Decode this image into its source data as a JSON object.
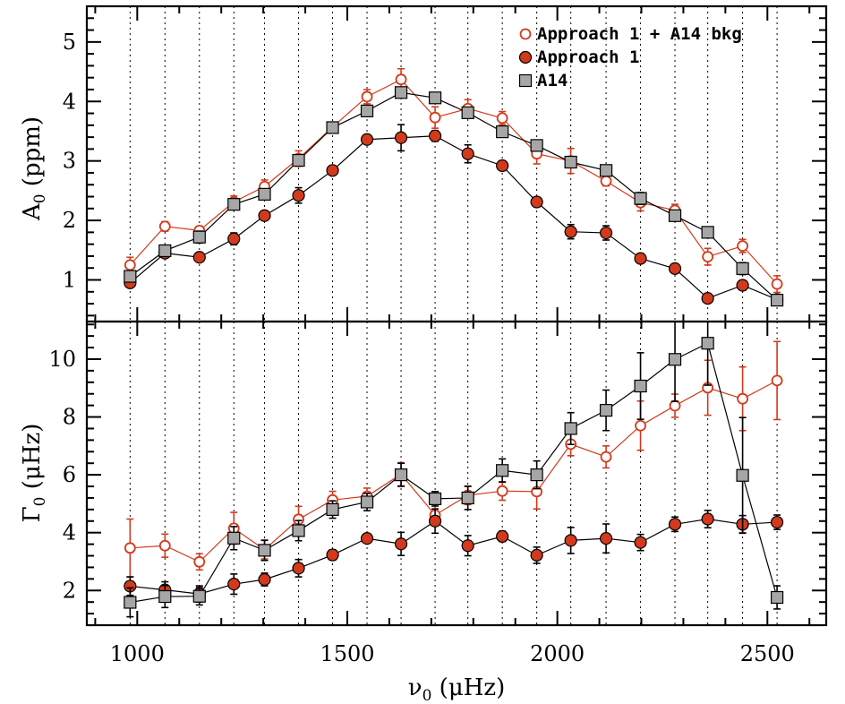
{
  "chart_data": [
    {
      "type": "line",
      "panel": "top",
      "ylabel": "A0 (ppm)",
      "ylabel_parts": {
        "main": "A",
        "sub": "0",
        "rest": " (ppm)"
      },
      "ylim": [
        0.3,
        5.6
      ],
      "yticks": [
        1,
        2,
        3,
        4,
        5
      ],
      "xlim": [
        880,
        2640
      ],
      "x": [
        983,
        1066,
        1148,
        1230,
        1303,
        1384,
        1465,
        1547,
        1628,
        1709,
        1787,
        1869,
        1951,
        2032,
        2116,
        2198,
        2280,
        2358,
        2441,
        2523
      ],
      "series": [
        {
          "name": "Approach 1 + A14 bkg",
          "color": "#d13a1c",
          "marker": "open-circle",
          "values": [
            1.25,
            1.9,
            1.83,
            2.31,
            2.57,
            3.04,
            3.57,
            4.08,
            4.37,
            3.73,
            3.88,
            3.72,
            3.12,
            3.0,
            2.66,
            2.3,
            2.17,
            1.39,
            1.57,
            0.93
          ],
          "errors": [
            0.13,
            0.08,
            0.07,
            0.1,
            0.11,
            0.13,
            0.08,
            0.12,
            0.18,
            0.18,
            0.15,
            0.11,
            0.17,
            0.21,
            0.08,
            0.14,
            0.1,
            0.14,
            0.11,
            0.14
          ]
        },
        {
          "name": "Approach 1",
          "color": "#d13a1c",
          "marker": "filled-circle",
          "values": [
            0.95,
            1.45,
            1.38,
            1.69,
            2.08,
            2.42,
            2.84,
            3.36,
            3.39,
            3.42,
            3.12,
            2.92,
            2.31,
            1.81,
            1.79,
            1.36,
            1.19,
            0.69,
            0.91,
            0.67
          ],
          "errors": [
            0.06,
            0.06,
            0.06,
            0.1,
            0.07,
            0.13,
            0.07,
            0.06,
            0.22,
            0.09,
            0.15,
            0.08,
            0.08,
            0.12,
            0.12,
            0.07,
            0.06,
            0.06,
            0.08,
            0.05
          ]
        },
        {
          "name": "A14",
          "color": "#a6a6a6",
          "marker": "filled-square",
          "values": [
            1.06,
            1.49,
            1.72,
            2.27,
            2.44,
            3.01,
            3.56,
            3.84,
            4.15,
            4.06,
            3.81,
            3.49,
            3.26,
            2.98,
            2.84,
            2.37,
            2.08,
            1.8,
            1.19,
            0.66
          ],
          "errors": [
            0.07,
            0.08,
            0.1,
            0.07,
            0.07,
            0.05,
            0.04,
            0.05,
            0.06,
            0.07,
            0.06,
            0.05,
            0.05,
            0.07,
            0.06,
            0.1,
            0.07,
            0.08,
            0.1,
            0.08
          ]
        }
      ],
      "legend": {
        "placement": "top-right",
        "entries": [
          "Approach 1 + A14 bkg",
          "Approach 1",
          "A14"
        ]
      }
    },
    {
      "type": "line",
      "panel": "bottom",
      "xlabel": "ν0 (μHz)",
      "xlabel_parts": {
        "main": "ν",
        "sub": "0",
        "rest": " (μHz)"
      },
      "ylabel": "Γ0 (μHz)",
      "ylabel_parts": {
        "main": "Γ",
        "sub": "0",
        "rest": " (μHz)"
      },
      "ylim": [
        0.8,
        11.3
      ],
      "yticks": [
        2,
        4,
        6,
        8,
        10
      ],
      "xlim": [
        880,
        2640
      ],
      "xticks": [
        1000,
        1500,
        2000,
        2500
      ],
      "x": [
        983,
        1066,
        1148,
        1230,
        1303,
        1384,
        1465,
        1547,
        1628,
        1709,
        1787,
        1869,
        1951,
        2032,
        2116,
        2198,
        2280,
        2358,
        2441,
        2523
      ],
      "series": [
        {
          "name": "Approach 1 + A14 bkg",
          "color": "#d13a1c",
          "marker": "open-circle",
          "values": [
            3.47,
            3.55,
            2.99,
            4.15,
            3.41,
            4.46,
            5.13,
            5.26,
            6.02,
            4.61,
            5.29,
            5.44,
            5.42,
            7.06,
            6.62,
            7.7,
            8.39,
            9.01,
            8.63,
            9.26
          ],
          "errors": [
            1.0,
            0.4,
            0.28,
            0.55,
            0.32,
            0.45,
            0.3,
            0.28,
            0.4,
            0.38,
            0.32,
            0.32,
            0.6,
            0.4,
            0.38,
            0.85,
            0.4,
            0.95,
            1.1,
            1.35
          ]
        },
        {
          "name": "Approach 1",
          "color": "#d13a1c",
          "marker": "filled-circle",
          "values": [
            2.15,
            2.02,
            1.88,
            2.22,
            2.38,
            2.77,
            3.23,
            3.8,
            3.61,
            4.4,
            3.55,
            3.87,
            3.22,
            3.73,
            3.8,
            3.66,
            4.29,
            4.47,
            4.29,
            4.36
          ],
          "errors": [
            0.32,
            0.28,
            0.28,
            0.35,
            0.22,
            0.3,
            0.18,
            0.12,
            0.4,
            0.42,
            0.35,
            0.18,
            0.28,
            0.45,
            0.5,
            0.28,
            0.25,
            0.3,
            0.3,
            0.25
          ]
        },
        {
          "name": "A14",
          "color": "#a6a6a6",
          "marker": "filled-square",
          "values": [
            1.59,
            1.79,
            1.8,
            3.81,
            3.39,
            4.07,
            4.8,
            5.06,
            6.0,
            5.17,
            5.2,
            6.15,
            6.0,
            7.6,
            8.23,
            9.07,
            9.99,
            10.55,
            5.98,
            1.76
          ],
          "errors": [
            0.5,
            0.38,
            0.3,
            0.4,
            0.35,
            0.35,
            0.3,
            0.3,
            0.4,
            0.25,
            0.4,
            0.4,
            0.48,
            0.55,
            0.7,
            1.15,
            1.45,
            1.45,
            2.0,
            0.4
          ]
        }
      ]
    }
  ]
}
